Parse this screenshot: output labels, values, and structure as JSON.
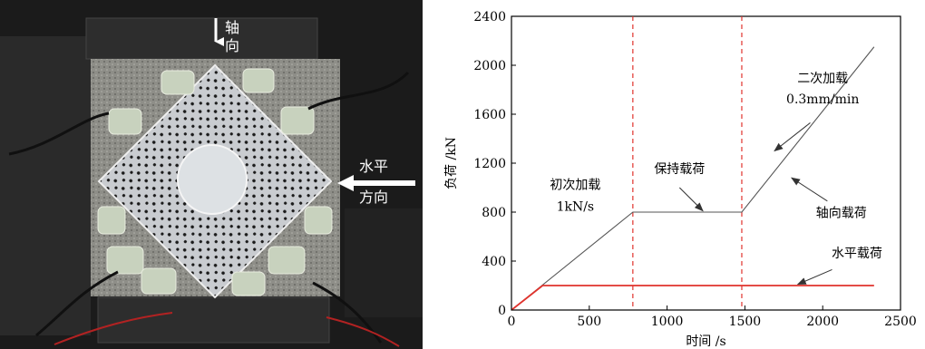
{
  "photo_labels": {
    "axial_line1": "轴",
    "axial_line2": "向",
    "horizontal_line1": "水平",
    "horizontal_line2": "方向"
  },
  "chart_data": {
    "type": "line",
    "title": "",
    "xlabel": "时间 /s",
    "ylabel": "负荷 /kN",
    "xlim": [
      0,
      2500
    ],
    "ylim": [
      0,
      2400
    ],
    "xticks": [
      0,
      500,
      1000,
      1500,
      2000,
      2500
    ],
    "yticks": [
      0,
      400,
      800,
      1200,
      1600,
      2000,
      2400
    ],
    "grid": false,
    "series": [
      {
        "name": "轴向载荷",
        "color": "#555555",
        "points": [
          [
            0,
            0
          ],
          [
            780,
            800
          ],
          [
            1480,
            800
          ],
          [
            2330,
            2150
          ]
        ]
      },
      {
        "name": "水平载荷",
        "color": "#e0332d",
        "points": [
          [
            0,
            0
          ],
          [
            200,
            200
          ],
          [
            2330,
            200
          ]
        ]
      }
    ],
    "vlines": [
      {
        "x": 780,
        "color": "#e0332d",
        "style": "dashed"
      },
      {
        "x": 1480,
        "color": "#e0332d",
        "style": "dashed"
      }
    ],
    "annotations": [
      {
        "text": "初次加载",
        "x": 410,
        "y": 990
      },
      {
        "text": "1kN/s",
        "x": 410,
        "y": 810
      },
      {
        "text": "保持载荷",
        "x": 1080,
        "y": 1120
      },
      {
        "text": "二次加载",
        "x": 2000,
        "y": 1860
      },
      {
        "text": "0.3mm/min",
        "x": 2000,
        "y": 1690
      },
      {
        "text": "轴向载荷",
        "x": 2120,
        "y": 760
      },
      {
        "text": "水平载荷",
        "x": 2220,
        "y": 430
      }
    ],
    "arrows": [
      {
        "from": [
          1920,
          1530
        ],
        "to": [
          1690,
          1300
        ]
      },
      {
        "from": [
          1080,
          1000
        ],
        "to": [
          1230,
          810
        ]
      },
      {
        "from": [
          2030,
          890
        ],
        "to": [
          1800,
          1080
        ]
      },
      {
        "from": [
          2060,
          330
        ],
        "to": [
          1840,
          210
        ]
      }
    ]
  }
}
